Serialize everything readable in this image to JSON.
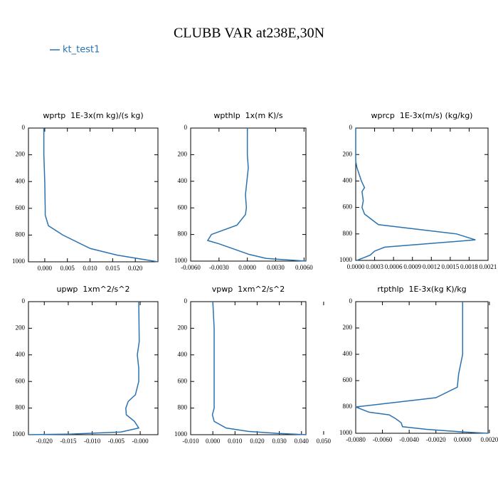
{
  "title": "CLUBB VAR at238E,30N",
  "chart_data": [
    {
      "type": "line",
      "title": "wprtp  1E-3x(m kg)/(s kg)",
      "y_inverted": true,
      "xlim": [
        -0.0036,
        0.025
      ],
      "ylim": [
        0,
        1000
      ],
      "xticks": [
        {
          "value": 0,
          "label": "0.000"
        },
        {
          "value": 0.005,
          "label": "0.005"
        },
        {
          "value": 0.01,
          "label": "0.010"
        },
        {
          "value": 0.015,
          "label": "0.015"
        },
        {
          "value": 0.02,
          "label": "0.020"
        }
      ],
      "yticks": [
        0,
        200,
        400,
        600,
        800,
        1000
      ],
      "levels": [
        0,
        200,
        400,
        600,
        650,
        730,
        800,
        900,
        950,
        1000
      ],
      "series": [
        {
          "name": "kt_test1",
          "color": "#2a72b0",
          "values": [
            -0.0002,
            -0.0002,
            0.0,
            0.0001,
            0.0001,
            0.0008,
            0.004,
            0.01,
            0.016,
            0.025
          ]
        }
      ]
    },
    {
      "type": "line",
      "title": "wpthlp  1x(m K)/s",
      "y_inverted": true,
      "xlim": [
        -0.006,
        0.0062
      ],
      "ylim": [
        0,
        1000
      ],
      "xticks": [
        {
          "value": -0.006,
          "label": "-0.0060"
        },
        {
          "value": -0.003,
          "label": "-0.0030"
        },
        {
          "value": 0,
          "label": "0.0000"
        },
        {
          "value": 0.003,
          "label": "0.0030"
        },
        {
          "value": 0.006,
          "label": "0.0060"
        }
      ],
      "yticks": [
        0,
        200,
        400,
        600,
        800,
        1000
      ],
      "levels": [
        0,
        200,
        300,
        500,
        600,
        650,
        730,
        800,
        845,
        870,
        950,
        980,
        1000
      ],
      "series": [
        {
          "name": "kt_test1",
          "color": "#2a72b0",
          "values": [
            0.0,
            0.0,
            0.0001,
            -0.0002,
            -0.0001,
            -0.0002,
            -0.0011,
            -0.0038,
            -0.0042,
            -0.003,
            0.0002,
            0.002,
            0.0062
          ]
        }
      ]
    },
    {
      "type": "line",
      "title": "wprcp  1E-3x(m/s) (kg/kg)",
      "y_inverted": true,
      "xlim": [
        0,
        0.0021
      ],
      "ylim": [
        0,
        1000
      ],
      "xticks": [
        {
          "value": 0,
          "label": "0.0000"
        },
        {
          "value": 0.0003,
          "label": "0.0003"
        },
        {
          "value": 0.0006,
          "label": "0.0006"
        },
        {
          "value": 0.0009,
          "label": "0.0009"
        },
        {
          "value": 0.0012,
          "label": "0.0012"
        },
        {
          "value": 0.0015,
          "label": "0.0015"
        },
        {
          "value": 0.0018,
          "label": "0.0018"
        },
        {
          "value": 0.0021,
          "label": "0.0021"
        }
      ],
      "yticks": [
        0,
        200,
        400,
        600,
        800,
        1000
      ],
      "levels": [
        0,
        250,
        300,
        400,
        450,
        480,
        550,
        600,
        650,
        730,
        800,
        845,
        900,
        930,
        960,
        1000
      ],
      "series": [
        {
          "name": "kt_test1",
          "color": "#2a72b0",
          "values": [
            0.0,
            0.0,
            2e-05,
            9e-05,
            0.00014,
            0.0001,
            0.00012,
            0.0001,
            0.00014,
            0.00036,
            0.0016,
            0.0019,
            0.00046,
            0.0003,
            0.00023,
            2e-05
          ]
        }
      ]
    },
    {
      "type": "line",
      "title": "upwp  1xm^2/s^2",
      "y_inverted": true,
      "xlim": [
        -0.0233,
        0.0037
      ],
      "ylim": [
        0,
        1000
      ],
      "xticks": [
        {
          "value": -0.02,
          "label": "-0.020"
        },
        {
          "value": -0.015,
          "label": "-0.015"
        },
        {
          "value": -0.01,
          "label": "-0.010"
        },
        {
          "value": -0.005,
          "label": "-0.005"
        },
        {
          "value": 0,
          "label": "-0.000"
        }
      ],
      "yticks": [
        0,
        200,
        400,
        600,
        800,
        1000
      ],
      "levels": [
        0,
        300,
        400,
        500,
        600,
        700,
        750,
        800,
        850,
        900,
        950,
        980,
        995,
        1000
      ],
      "series": [
        {
          "name": "kt_test1",
          "color": "#2a72b0",
          "values": [
            -0.0003,
            -0.0002,
            -0.0006,
            -0.0003,
            -0.0003,
            -0.001,
            -0.0025,
            -0.003,
            -0.0029,
            -0.0012,
            -0.0003,
            -0.004,
            -0.0144,
            -0.0233
          ]
        }
      ]
    },
    {
      "type": "line",
      "title": "vpwp  1xm^2/s^2",
      "y_inverted": true,
      "xlim": [
        -0.01,
        0.042
      ],
      "ylim": [
        0,
        1000
      ],
      "xticks": [
        {
          "value": -0.01,
          "label": "-0.010"
        },
        {
          "value": 0,
          "label": "0.000"
        },
        {
          "value": 0.01,
          "label": "0.010"
        },
        {
          "value": 0.02,
          "label": "0.020"
        },
        {
          "value": 0.03,
          "label": "0.030"
        },
        {
          "value": 0.04,
          "label": "0.040"
        },
        {
          "value": 0.05,
          "label": "0.050"
        }
      ],
      "yticks": [
        0,
        200,
        400,
        600,
        800,
        1000
      ],
      "levels": [
        0,
        200,
        400,
        600,
        800,
        850,
        900,
        950,
        975,
        990,
        1000
      ],
      "series": [
        {
          "name": "kt_test1",
          "color": "#2a72b0",
          "values": [
            0.0,
            0.0006,
            0.0006,
            0.0006,
            0.0006,
            -0.0002,
            0.0006,
            0.006,
            0.016,
            0.029,
            0.042
          ]
        }
      ]
    },
    {
      "type": "line",
      "title": "rtpthlp  1E-3x(kg K)/kg",
      "y_inverted": true,
      "xlim": [
        -0.008,
        0.0019
      ],
      "ylim": [
        0,
        1000
      ],
      "xticks": [
        {
          "value": -0.008,
          "label": "-0.0080"
        },
        {
          "value": -0.006,
          "label": "-0.0060"
        },
        {
          "value": -0.004,
          "label": "-0.0040"
        },
        {
          "value": -0.002,
          "label": "-0.0020"
        },
        {
          "value": 0,
          "label": "0.0000"
        },
        {
          "value": 0.002,
          "label": "0.0020"
        }
      ],
      "yticks": [
        0,
        200,
        400,
        600,
        800,
        1000
      ],
      "levels": [
        0,
        400,
        450,
        550,
        650,
        730,
        800,
        840,
        860,
        890,
        920,
        950,
        970,
        990,
        1000
      ],
      "series": [
        {
          "name": "kt_test1",
          "color": "#2a72b0",
          "values": [
            0.0,
            0.0,
            -0.0001,
            -0.0003,
            -0.0004,
            -0.002,
            -0.008,
            -0.007,
            -0.0055,
            -0.005,
            -0.0046,
            -0.0045,
            -0.0027,
            0.0,
            0.0019
          ]
        }
      ]
    }
  ]
}
